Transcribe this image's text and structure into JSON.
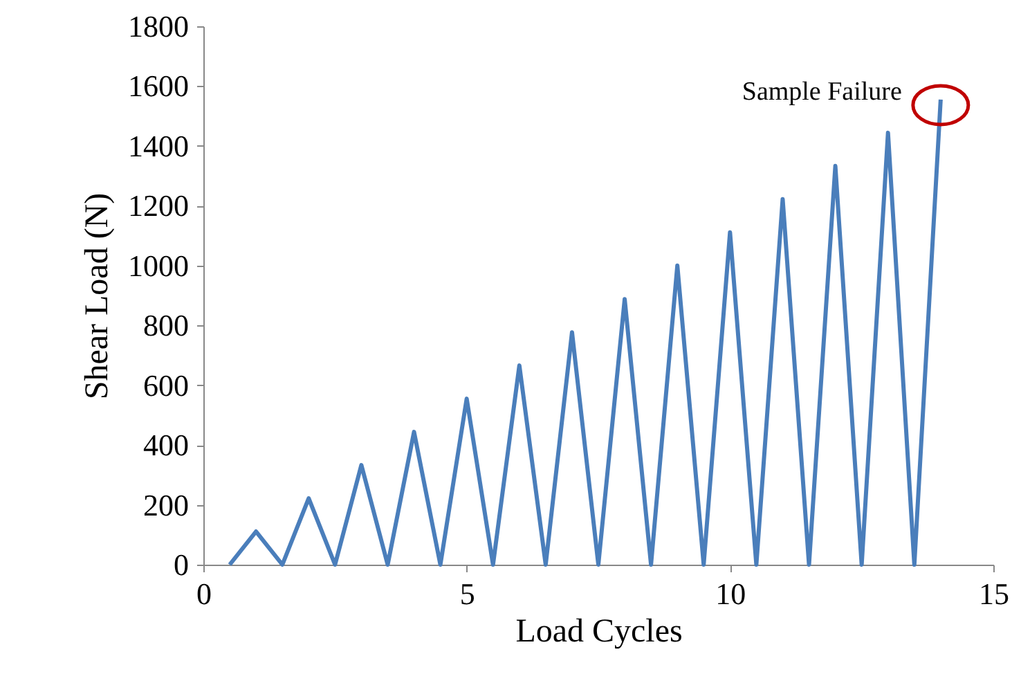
{
  "chart_data": {
    "type": "line",
    "xlabel": "Load Cycles",
    "ylabel": "Shear Load (N)",
    "x": [
      0.5,
      1,
      1.5,
      2,
      2.5,
      3,
      3.5,
      4,
      4.5,
      5,
      5.5,
      6,
      6.5,
      7,
      7.5,
      8,
      8.5,
      9,
      9.5,
      10,
      10.5,
      11,
      11.5,
      12,
      12.5,
      13,
      13.5,
      14
    ],
    "series": [
      {
        "color": "#4a7ebb",
        "values": [
          0,
          111,
          0,
          222,
          0,
          333,
          0,
          444,
          0,
          555,
          0,
          666,
          0,
          777,
          0,
          888,
          0,
          1000,
          0,
          1111,
          0,
          1222,
          0,
          1333,
          0,
          1444,
          0,
          1555
        ]
      }
    ],
    "xlim": [
      0,
      15
    ],
    "xticks": [
      0,
      5,
      10,
      15
    ],
    "ylim": [
      0,
      1800
    ],
    "yticks": [
      0,
      200,
      400,
      600,
      800,
      1000,
      1200,
      1400,
      1600,
      1800
    ],
    "grid": false,
    "marker": "none",
    "line_style": "solid",
    "annotations": [
      {
        "text": "Sample Failure",
        "x": 14,
        "y": 1555
      }
    ]
  }
}
